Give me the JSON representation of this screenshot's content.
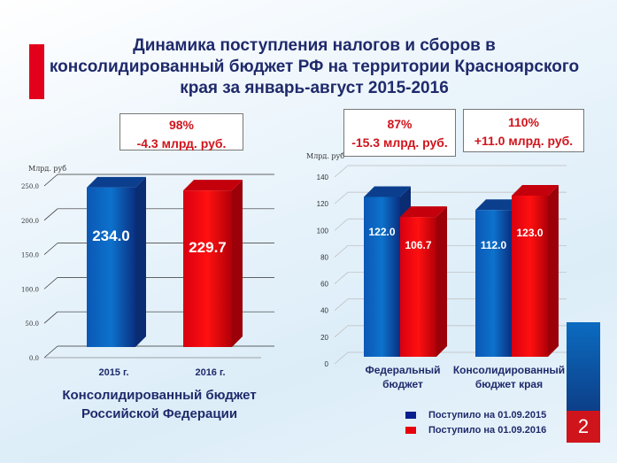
{
  "title": "Динамика поступления налогов и сборов в консолидированный бюджет РФ на территории Красноярского края за январь-август 2015-2016",
  "colors": {
    "blue": "#0d4ea6",
    "red": "#e8000d",
    "accent_red": "#d0141c",
    "text": "#1f2a6b"
  },
  "page_number": "2",
  "left_box": {
    "pct": "98%",
    "diff": "-4.3 млрд. руб."
  },
  "right_boxes": [
    {
      "pct": "87%",
      "diff": "-15.3 млрд. руб."
    },
    {
      "pct": "110%",
      "diff": "+11.0 млрд. руб."
    }
  ],
  "legend": [
    "Поступило  на 01.09.2015",
    "Поступило  на 01.09.2016"
  ],
  "chart_data": [
    {
      "type": "bar",
      "title": "",
      "ylabel": "Млрд. руб",
      "xlabel": "Консолидированный бюджет Российской Федерации",
      "categories": [
        "2015 г.",
        "2016 г."
      ],
      "values": [
        234.0,
        229.7
      ],
      "ylim": [
        0,
        250
      ],
      "yticks": [
        "0.0",
        "50.0",
        "100.0",
        "150.0",
        "200.0",
        "250.0"
      ],
      "grid": true
    },
    {
      "type": "bar",
      "title": "",
      "ylabel": "Млрд. руб",
      "categories": [
        "Федеральный бюджет",
        "Консолидированный бюджет края"
      ],
      "series": [
        {
          "name": "Поступило  на 01.09.2015",
          "values": [
            122.0,
            112.0
          ]
        },
        {
          "name": "Поступило  на 01.09.2016",
          "values": [
            106.7,
            123.0
          ]
        }
      ],
      "ylim": [
        0,
        140
      ],
      "yticks": [
        "0",
        "20",
        "40",
        "60",
        "80",
        "100",
        "120",
        "140"
      ],
      "grid": true,
      "legend": "bottom-right"
    }
  ]
}
